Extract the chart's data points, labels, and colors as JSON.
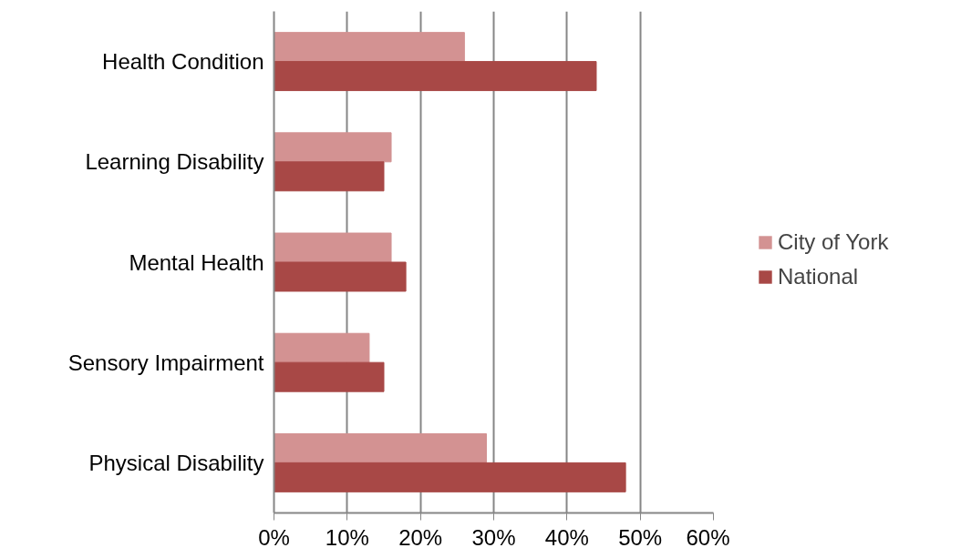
{
  "chart_data": {
    "type": "bar",
    "orientation": "horizontal",
    "categories": [
      "Health Condition",
      "Learning Disability",
      "Mental Health",
      "Sensory Impairment",
      "Physical Disability"
    ],
    "series": [
      {
        "name": "City of York",
        "color": "#d39292",
        "values": [
          26,
          16,
          16,
          13,
          29
        ]
      },
      {
        "name": "National",
        "color": "#a84846",
        "values": [
          44,
          15,
          18,
          15,
          48
        ]
      }
    ],
    "xlim": [
      0,
      60
    ],
    "xticks": [
      {
        "value": 0,
        "label": "0%"
      },
      {
        "value": 10,
        "label": "10%"
      },
      {
        "value": 20,
        "label": "20%"
      },
      {
        "value": 30,
        "label": "30%"
      },
      {
        "value": 40,
        "label": "40%"
      },
      {
        "value": 50,
        "label": "50%"
      },
      {
        "value": 60,
        "label": "60%"
      }
    ],
    "grid": "x",
    "legend": "right"
  }
}
